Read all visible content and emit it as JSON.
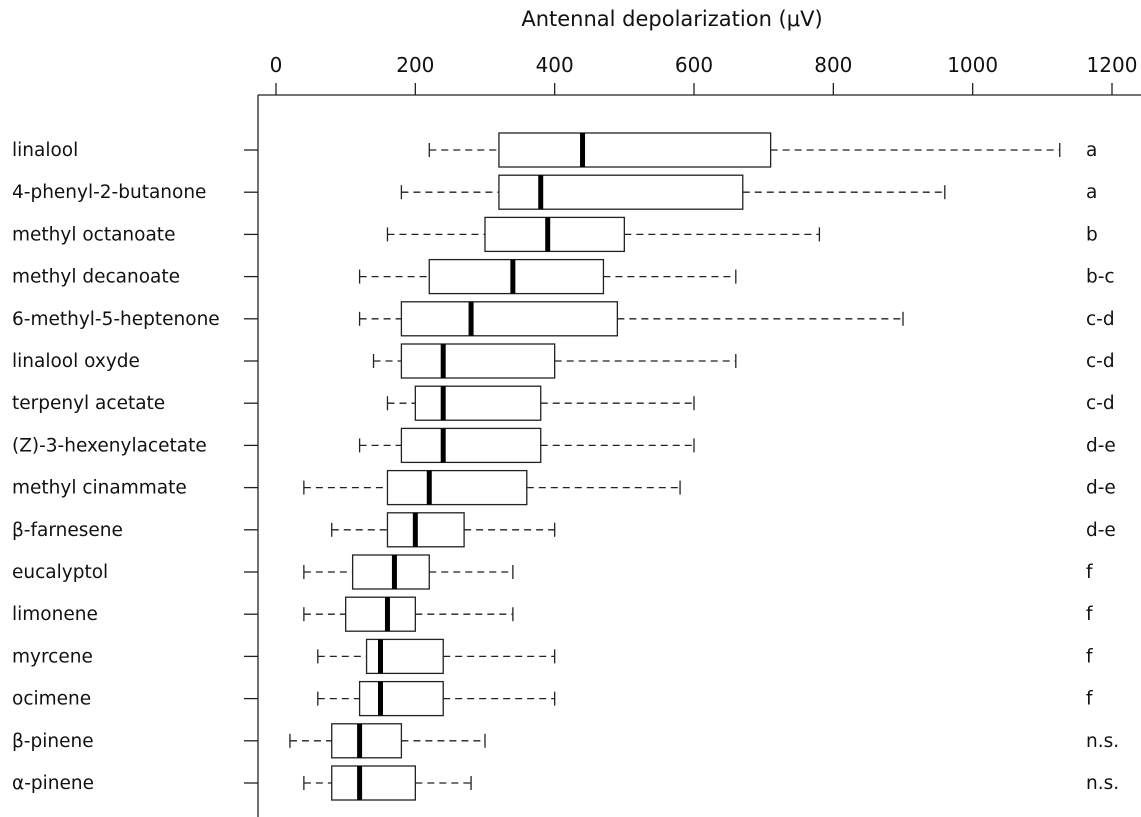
{
  "chart_data": {
    "type": "boxplot",
    "xlabel": "Antennal depolarization (μV)",
    "xlim": [
      -10,
      1200
    ],
    "xticks": [
      0,
      200,
      400,
      600,
      800,
      1000,
      1200
    ],
    "orientation": "horizontal",
    "categories": [
      {
        "name": "linalool",
        "min": 220,
        "q1": 320,
        "median": 440,
        "q3": 710,
        "max": 1125,
        "group": "a"
      },
      {
        "name": "4-phenyl-2-butanone",
        "min": 180,
        "q1": 320,
        "median": 380,
        "q3": 670,
        "max": 960,
        "group": "a"
      },
      {
        "name": "methyl octanoate",
        "min": 160,
        "q1": 300,
        "median": 390,
        "q3": 500,
        "max": 780,
        "group": "b"
      },
      {
        "name": "methyl decanoate",
        "min": 120,
        "q1": 220,
        "median": 340,
        "q3": 470,
        "max": 660,
        "group": "b-c"
      },
      {
        "name": "6-methyl-5-heptenone",
        "min": 120,
        "q1": 180,
        "median": 280,
        "q3": 490,
        "max": 900,
        "group": "c-d"
      },
      {
        "name": "linalool oxyde",
        "min": 140,
        "q1": 180,
        "median": 240,
        "q3": 400,
        "max": 660,
        "group": "c-d"
      },
      {
        "name": "terpenyl acetate",
        "min": 160,
        "q1": 200,
        "median": 240,
        "q3": 380,
        "max": 600,
        "group": "c-d"
      },
      {
        "name": "(Z)-3-hexenylacetate",
        "min": 120,
        "q1": 180,
        "median": 240,
        "q3": 380,
        "max": 600,
        "group": "d-e"
      },
      {
        "name": "methyl cinammate",
        "min": 40,
        "q1": 160,
        "median": 220,
        "q3": 360,
        "max": 580,
        "group": "d-e"
      },
      {
        "name": "β-farnesene",
        "min": 80,
        "q1": 160,
        "median": 200,
        "q3": 270,
        "max": 400,
        "group": "d-e"
      },
      {
        "name": "eucalyptol",
        "min": 40,
        "q1": 110,
        "median": 170,
        "q3": 220,
        "max": 340,
        "group": "f"
      },
      {
        "name": "limonene",
        "min": 40,
        "q1": 100,
        "median": 160,
        "q3": 200,
        "max": 340,
        "group": "f"
      },
      {
        "name": "myrcene",
        "min": 60,
        "q1": 130,
        "median": 150,
        "q3": 240,
        "max": 400,
        "group": "f"
      },
      {
        "name": "ocimene",
        "min": 60,
        "q1": 120,
        "median": 150,
        "q3": 240,
        "max": 400,
        "group": "f"
      },
      {
        "name": "β-pinene",
        "min": 20,
        "q1": 80,
        "median": 120,
        "q3": 180,
        "max": 300,
        "group": "n.s."
      },
      {
        "name": "α-pinene",
        "min": 40,
        "q1": 80,
        "median": 120,
        "q3": 200,
        "max": 280,
        "group": "n.s."
      }
    ]
  }
}
